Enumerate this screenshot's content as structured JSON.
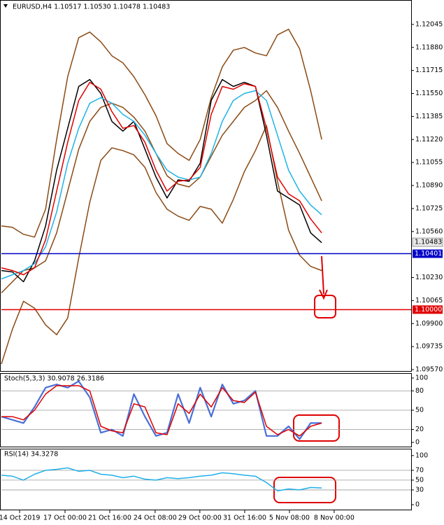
{
  "chart_data": [
    {
      "type": "line",
      "title": "EURUSD,H4  1.10517 1.10530 1.10478 1.10483",
      "x": [
        0,
        1,
        2,
        3,
        4,
        5,
        6,
        7,
        8,
        9,
        10,
        11,
        12,
        13,
        14,
        15,
        16,
        17,
        18,
        19,
        20,
        21,
        22,
        23,
        24,
        25,
        26,
        27,
        28,
        29
      ],
      "xlim": [
        0,
        37.1
      ],
      "ylim": [
        1.0956,
        1.1221
      ],
      "yticks": [
        {
          "value": 1.12045,
          "label": "1.12045"
        },
        {
          "value": 1.1188,
          "label": "1.11880"
        },
        {
          "value": 1.11715,
          "label": "1.11715"
        },
        {
          "value": 1.1155,
          "label": "1.11550"
        },
        {
          "value": 1.11385,
          "label": "1.11385"
        },
        {
          "value": 1.1122,
          "label": "1.11220"
        },
        {
          "value": 1.11055,
          "label": "1.11055"
        },
        {
          "value": 1.1089,
          "label": "1.10890"
        },
        {
          "value": 1.10725,
          "label": "1.10725"
        },
        {
          "value": 1.1056,
          "label": "1.10560"
        },
        {
          "value": 1.1023,
          "label": "1.10230"
        },
        {
          "value": 1.10065,
          "label": "1.10065"
        },
        {
          "value": 1.099,
          "label": "1.09900"
        },
        {
          "value": 1.09735,
          "label": "1.09735"
        },
        {
          "value": 1.0957,
          "label": "1.09570"
        }
      ],
      "current_price": 1.10483,
      "hlines": [
        {
          "value": 1.10401,
          "label": "1.10401",
          "color": "#0000c8"
        },
        {
          "value": 1.1,
          "label": "1.10000",
          "color": "#e00000"
        }
      ],
      "series": [
        {
          "color": "#8b4a14",
          "values": [
            1.106,
            1.1059,
            1.1054,
            1.1052,
            1.1072,
            1.1122,
            1.1167,
            1.1195,
            1.1199,
            1.1192,
            1.1182,
            1.1177,
            1.1167,
            1.1154,
            1.1139,
            1.1119,
            1.1112,
            1.1107,
            1.1122,
            1.1152,
            1.1174,
            1.1186,
            1.1188,
            1.1184,
            1.1182,
            1.1197,
            1.1201,
            1.1187,
            1.1157,
            1.1122
          ]
        },
        {
          "color": "#8b4a14",
          "values": [
            1.1012,
            1.102,
            1.1028,
            1.103,
            1.1035,
            1.1055,
            1.1085,
            1.1115,
            1.1135,
            1.1145,
            1.1148,
            1.1145,
            1.1138,
            1.1128,
            1.1112,
            1.1096,
            1.109,
            1.1088,
            1.1095,
            1.111,
            1.1125,
            1.1135,
            1.1145,
            1.115,
            1.1157,
            1.1145,
            1.1128,
            1.1112,
            1.1095,
            1.1078
          ]
        },
        {
          "color": "#8b4a14",
          "values": [
            1.0961,
            1.0986,
            1.1006,
            1.1001,
            1.0989,
            1.0982,
            1.0994,
            1.1037,
            1.1077,
            1.1107,
            1.1116,
            1.1114,
            1.1111,
            1.1102,
            1.1084,
            1.1072,
            1.1067,
            1.1064,
            1.1074,
            1.1072,
            1.1062,
            1.1079,
            1.1099,
            1.1114,
            1.1132,
            1.1092,
            1.1057,
            1.1039,
            1.1031,
            1.1028
          ]
        },
        {
          "color": "#000000",
          "values": [
            1.1028,
            1.1027,
            1.102,
            1.1035,
            1.106,
            1.11,
            1.113,
            1.116,
            1.1165,
            1.1155,
            1.1135,
            1.1128,
            1.1135,
            1.1115,
            1.1095,
            1.108,
            1.1093,
            1.1092,
            1.1105,
            1.115,
            1.1165,
            1.116,
            1.1163,
            1.116,
            1.1125,
            1.1085,
            1.108,
            1.1075,
            1.1055,
            1.1048
          ]
        },
        {
          "color": "#1fb4e6",
          "values": [
            1.1022,
            1.1025,
            1.1028,
            1.1033,
            1.1045,
            1.107,
            1.1105,
            1.113,
            1.1148,
            1.1152,
            1.1148,
            1.114,
            1.1135,
            1.1125,
            1.1112,
            1.11,
            1.1095,
            1.1093,
            1.1095,
            1.1112,
            1.1135,
            1.115,
            1.1155,
            1.1157,
            1.115,
            1.1125,
            1.11,
            1.1085,
            1.1075,
            1.1068
          ]
        },
        {
          "color": "#e00000",
          "values": [
            1.103,
            1.1028,
            1.1025,
            1.103,
            1.105,
            1.1085,
            1.112,
            1.115,
            1.1163,
            1.1158,
            1.1142,
            1.113,
            1.1132,
            1.112,
            1.11,
            1.1085,
            1.1092,
            1.1093,
            1.1102,
            1.114,
            1.116,
            1.1158,
            1.1162,
            1.116,
            1.113,
            1.1095,
            1.1083,
            1.1078,
            1.1065,
            1.1055
          ]
        }
      ]
    },
    {
      "type": "line",
      "title": "Stoch(5,3,3) 30.9078 26.3186",
      "x": [
        0,
        1,
        2,
        3,
        4,
        5,
        6,
        7,
        8,
        9,
        10,
        11,
        12,
        13,
        14,
        15,
        16,
        17,
        18,
        19,
        20,
        21,
        22,
        23,
        24,
        25,
        26,
        27,
        28,
        29
      ],
      "xlim": [
        0,
        37.1
      ],
      "ylim": [
        -6.5,
        107.6
      ],
      "yticks": [
        100,
        80,
        50,
        20,
        0
      ],
      "levels": [
        80,
        50,
        20
      ],
      "series": [
        {
          "color": "#4a6fd6",
          "values": [
            40,
            35,
            30,
            55,
            85,
            90,
            85,
            95,
            70,
            15,
            20,
            10,
            75,
            40,
            10,
            15,
            75,
            30,
            85,
            40,
            90,
            60,
            65,
            80,
            10,
            10,
            25,
            5,
            30,
            30
          ]
        },
        {
          "color": "#e00000",
          "values": [
            40,
            40,
            35,
            50,
            75,
            88,
            88,
            88,
            80,
            25,
            18,
            15,
            60,
            55,
            15,
            12,
            60,
            45,
            75,
            55,
            85,
            65,
            62,
            78,
            25,
            12,
            20,
            10,
            25,
            30
          ]
        }
      ]
    },
    {
      "type": "line",
      "title": "RSI(14) 34.3278",
      "x": [
        0,
        1,
        2,
        3,
        4,
        5,
        6,
        7,
        8,
        9,
        10,
        11,
        12,
        13,
        14,
        15,
        16,
        17,
        18,
        19,
        20,
        21,
        22,
        23,
        24,
        25,
        26,
        27,
        28,
        29
      ],
      "xlim": [
        0,
        37.1
      ],
      "ylim": [
        -10,
        114
      ],
      "yticks": [
        100,
        70,
        50,
        30,
        0
      ],
      "levels": [
        70,
        50,
        30
      ],
      "xticks": [
        {
          "value": 1.65,
          "label": "14 Oct 2019"
        },
        {
          "value": 5.76,
          "label": "17 Oct 00:00"
        },
        {
          "value": 9.81,
          "label": "21 Oct 16:00"
        },
        {
          "value": 13.92,
          "label": "24 Oct 08:00"
        },
        {
          "value": 17.97,
          "label": "29 Oct 00:00"
        },
        {
          "value": 22.03,
          "label": "31 Oct 16:00"
        },
        {
          "value": 26.08,
          "label": "5 Nov 08:00"
        },
        {
          "value": 30.13,
          "label": "8 Nov 00:00"
        }
      ],
      "series": [
        {
          "color": "#20b0e8",
          "values": [
            60,
            58,
            50,
            62,
            70,
            72,
            75,
            68,
            70,
            62,
            60,
            55,
            58,
            52,
            50,
            55,
            53,
            55,
            58,
            60,
            65,
            63,
            60,
            58,
            45,
            28,
            32,
            30,
            35,
            34
          ]
        }
      ]
    }
  ]
}
